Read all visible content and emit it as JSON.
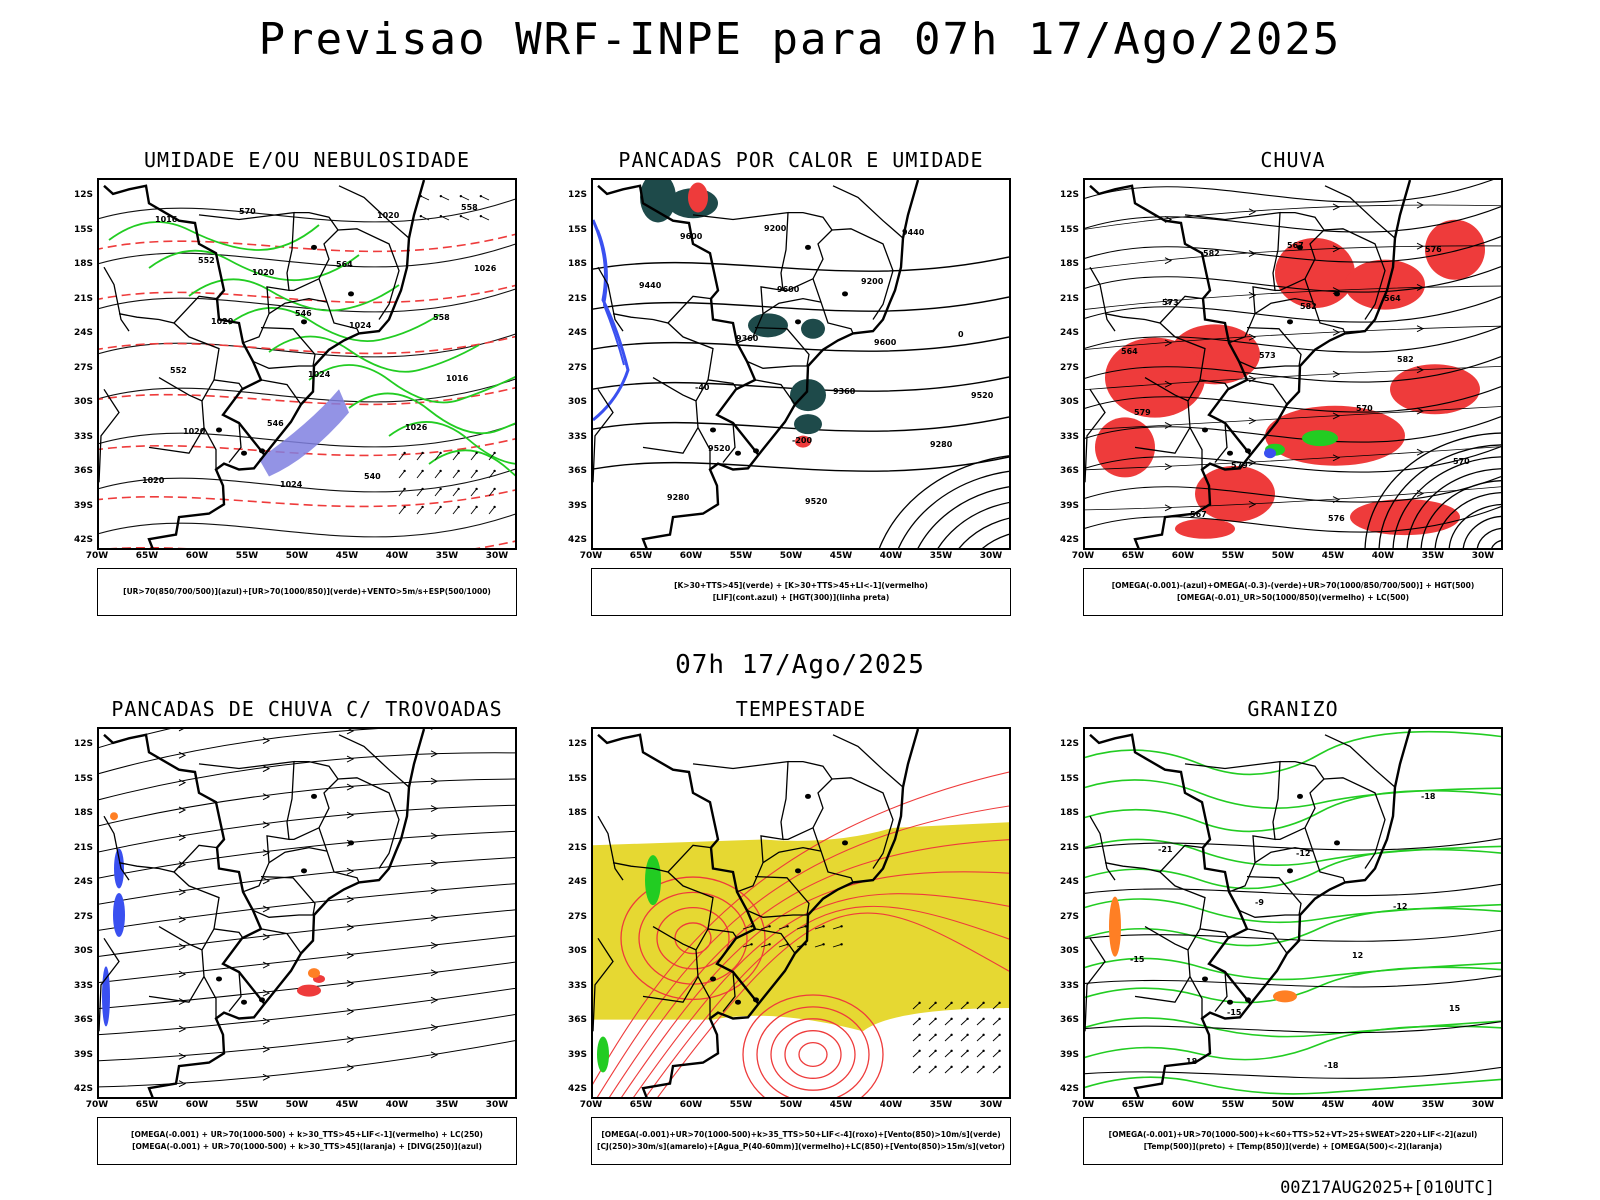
{
  "main_title": "Previsao WRF-INPE  para 07h 17/Ago/2025",
  "mid_title": "07h 17/Ago/2025",
  "footer": "00Z17AUG2025+[010UTC]",
  "lat_labels": [
    "12S",
    "15S",
    "18S",
    "21S",
    "24S",
    "27S",
    "30S",
    "33S",
    "36S",
    "39S",
    "42S"
  ],
  "lon_labels": [
    "70W",
    "65W",
    "60W",
    "55W",
    "50W",
    "45W",
    "40W",
    "35W",
    "30W"
  ],
  "colors": {
    "rain_red": "#ee3b3b",
    "humidity_green": "#22cc22",
    "humidity_blue": "#3a50f0",
    "yellow": "#e6d832",
    "dark_teal": "#1e4a4a",
    "orange": "#ff7f24",
    "purple": "#8080e0"
  },
  "panels": [
    {
      "id": "p1",
      "title": "UMIDADE E/OU NEBULOSIDADE",
      "legend": [
        "[UR>70(850/700/500)](azul)+[UR>70(1000/850)](verde)+VENTO>5m/s+ESP(500/1000)"
      ],
      "contour_labels": [
        "1016",
        "1020",
        "1024",
        "1016",
        "1020",
        "1024",
        "1020",
        "1026",
        "1020",
        "1024",
        "1026",
        "1020",
        "570",
        "564",
        "558",
        "552",
        "546",
        "540",
        "558",
        "552",
        "546"
      ]
    },
    {
      "id": "p2",
      "title": "PANCADAS POR CALOR E UMIDADE",
      "legend": [
        "[K>30+TTS>45](verde) + [K>30+TTS>45+LI<-1](vermelho)",
        "[LIF](cont.azul) + [HGT(300)](linha preta)"
      ],
      "contour_labels": [
        "9600",
        "9600",
        "9600",
        "9520",
        "9520",
        "9520",
        "9440",
        "9440",
        "9360",
        "9360",
        "9280",
        "9280",
        "9200",
        "9200",
        "0",
        "-40",
        "-200"
      ]
    },
    {
      "id": "p3",
      "title": "CHUVA",
      "legend": [
        "[OMEGA(-0.001)-(azul)+OMEGA(-0.3)-(verde)+UR>70(1000/850/700/500)] + HGT(500)",
        "[OMEGA(-0.01)_UR>50(1000/850)(vermelho) + LC(500)"
      ],
      "contour_labels": [
        "582",
        "582",
        "582",
        "579",
        "579",
        "576",
        "576",
        "573",
        "573",
        "570",
        "570",
        "567",
        "567",
        "564",
        "564"
      ]
    },
    {
      "id": "p4",
      "title": "PANCADAS DE CHUVA C/ TROVOADAS",
      "legend": [
        "[OMEGA(-0.001) + UR>70(1000-500) + k>30_TTS>45+LIF<-1](vermelho) + LC(250)",
        "[OMEGA(-0.001) + UR>70(1000-500) + k>30_TTS>45](laranja) + [DIVG(250)](azul)"
      ],
      "contour_labels": []
    },
    {
      "id": "p5",
      "title": "TEMPESTADE",
      "legend": [
        "[OMEGA(-0.001)+UR>70(1000-500)+k>35_TTS>50+LIF<-4](roxo)+[Vento(850)>10m/s](verde)",
        "[CJ(250)>30m/s](amarelo)+[Agua_P(40-60mm)](vermelho)+LC(850)+[Vento(850)>15m/s](vetor)"
      ],
      "contour_labels": []
    },
    {
      "id": "p6",
      "title": "GRANIZO",
      "legend": [
        "[OMEGA(-0.001)+UR>70(1000-500)+k<60+TTS>52+VT>25+SWEAT>220+LIF<-2](azul)",
        "[Temp(500)](preto) + [Temp(850)](verde) + [OMEGA(500)<-2](laranja)"
      ],
      "contour_labels": [
        "-12",
        "-12",
        "-15",
        "-15",
        "-18",
        "-18",
        "-21",
        "-9",
        "12",
        "15",
        "18"
      ]
    }
  ]
}
